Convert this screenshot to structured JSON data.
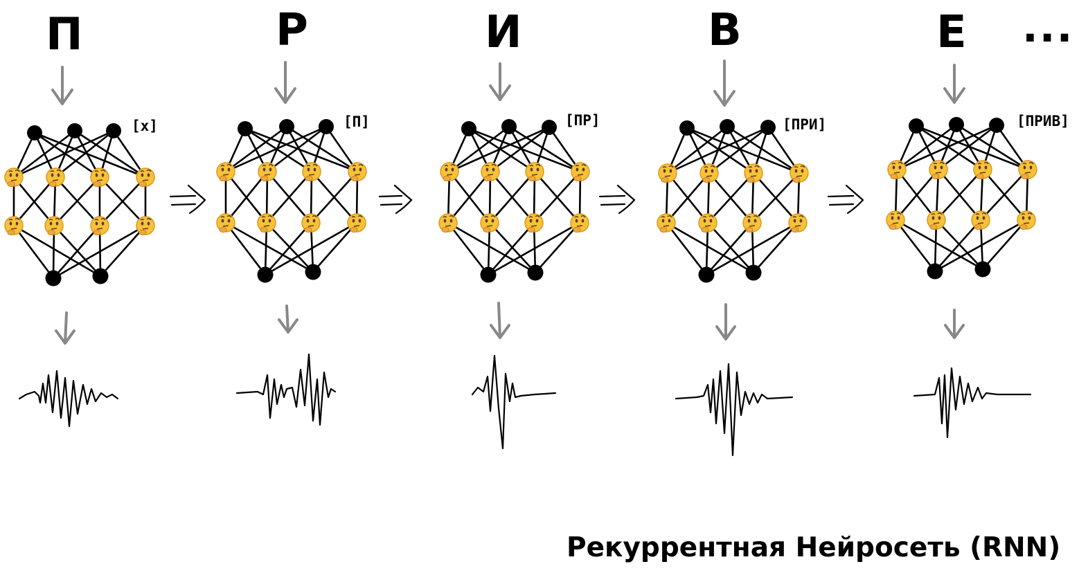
{
  "steps": [
    {
      "letter": "П",
      "context": "[x]"
    },
    {
      "letter": "Р",
      "context": "[П]"
    },
    {
      "letter": "И",
      "context": "[ПР]"
    },
    {
      "letter": "В",
      "context": "[ПРИ]"
    },
    {
      "letter": "Е",
      "context": "[ПРИВ]"
    }
  ],
  "ellipsis": "...",
  "caption": "Рекуррентная Нейросеть (RNN)",
  "icons": {
    "input_node": "black-dot",
    "hidden_node": "thinking-face-emoji",
    "output_node": "black-dot",
    "recurrent_link": "double-arrow-icon",
    "input_arrow": "down-arrow-icon",
    "output": "sound-waveform-icon"
  },
  "colors": {
    "ink": "#000000",
    "arrow": "#888888",
    "face": "#F7C23A",
    "face_outline": "#D99A1E"
  }
}
